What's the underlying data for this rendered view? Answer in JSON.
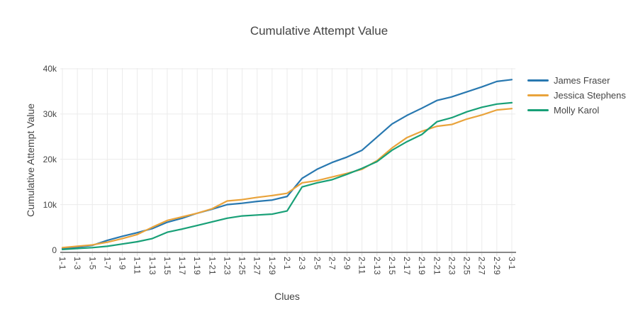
{
  "title": "Cumulative Attempt Value",
  "x_axis": {
    "title": "Clues"
  },
  "y_axis": {
    "title": "Cumulative Attempt Value",
    "ticks": [
      "0",
      "10k",
      "20k",
      "30k",
      "40k"
    ],
    "tick_values": [
      0,
      10000,
      20000,
      30000,
      40000
    ]
  },
  "colors": {
    "text": "#444444",
    "grid": "#ebebeb",
    "tick_stub": "#d9d9d9",
    "axis_line": "#888888",
    "background": "#ffffff"
  },
  "chart_data": {
    "type": "line",
    "title": "Cumulative Attempt Value",
    "xlabel": "Clues",
    "ylabel": "Cumulative Attempt Value",
    "ylim": [
      0,
      40000
    ],
    "grid": true,
    "legend_position": "right",
    "categories": [
      "1-1",
      "1-3",
      "1-5",
      "1-7",
      "1-9",
      "1-11",
      "1-13",
      "1-15",
      "1-17",
      "1-19",
      "1-21",
      "1-23",
      "1-25",
      "1-27",
      "1-29",
      "2-1",
      "2-3",
      "2-5",
      "2-7",
      "2-9",
      "2-11",
      "2-13",
      "2-15",
      "2-17",
      "2-19",
      "2-21",
      "2-23",
      "2-25",
      "2-27",
      "2-29",
      "3-1"
    ],
    "series": [
      {
        "name": "James Fraser",
        "color": "#2878b0",
        "values": [
          300,
          600,
          1000,
          2100,
          3000,
          3800,
          4700,
          6100,
          7000,
          8100,
          9000,
          10000,
          10300,
          10700,
          11000,
          11800,
          15800,
          17800,
          19300,
          20500,
          22000,
          24900,
          27800,
          29700,
          31300,
          33000,
          33800,
          34900,
          36000,
          37200,
          37600
        ]
      },
      {
        "name": "Jessica Stephens",
        "color": "#e9a33b",
        "values": [
          500,
          800,
          1100,
          1700,
          2500,
          3400,
          5000,
          6500,
          7300,
          8100,
          9100,
          10800,
          11100,
          11600,
          12000,
          12500,
          14800,
          15300,
          16100,
          16900,
          17800,
          19700,
          22500,
          24800,
          26200,
          27300,
          27700,
          28900,
          29800,
          30900,
          31200
        ]
      },
      {
        "name": "Molly Karol",
        "color": "#18a077",
        "values": [
          100,
          300,
          500,
          800,
          1300,
          1800,
          2500,
          3900,
          4600,
          5400,
          6200,
          7000,
          7500,
          7700,
          7900,
          8600,
          13900,
          14800,
          15500,
          16700,
          18000,
          19500,
          22000,
          23900,
          25500,
          28300,
          29200,
          30500,
          31500,
          32200,
          32500
        ]
      }
    ]
  }
}
